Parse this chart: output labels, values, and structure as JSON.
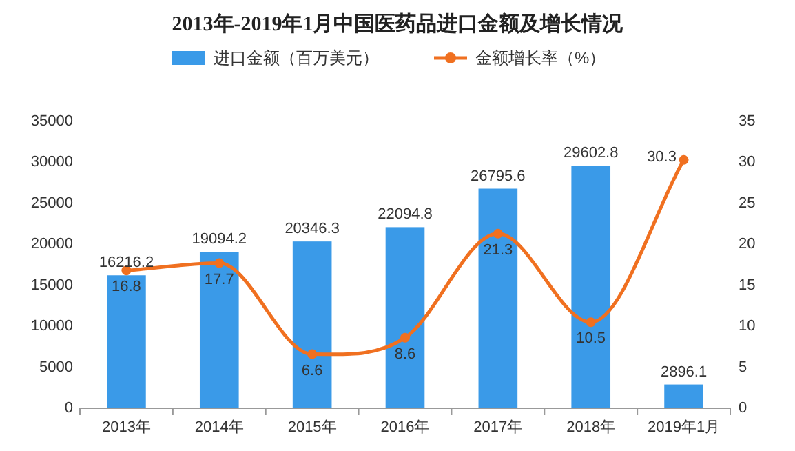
{
  "chart_data": {
    "type": "bar",
    "title": "2013年-2019年1月中国医药品进口金额及增长情况",
    "categories": [
      "2013年",
      "2014年",
      "2015年",
      "2016年",
      "2017年",
      "2018年",
      "2019年1月"
    ],
    "series": [
      {
        "name": "进口金额（百万美元）",
        "color": "#3a9ae8",
        "values": [
          16216.2,
          19094.2,
          20346.3,
          22094.8,
          26795.6,
          29602.8,
          2896.1
        ]
      },
      {
        "name": "金额增长率（%）",
        "type": "line",
        "axis": "y2",
        "color": "#f07020",
        "values": [
          16.8,
          17.7,
          6.6,
          8.6,
          21.3,
          10.5,
          30.3
        ]
      }
    ],
    "ylim": [
      0,
      35000
    ],
    "yticks": [
      0,
      5000,
      10000,
      15000,
      20000,
      25000,
      30000,
      35000
    ],
    "y2lim": [
      0,
      35
    ],
    "y2ticks": [
      0,
      5,
      10,
      15,
      20,
      25,
      30,
      35
    ],
    "data_labels": true,
    "legend": "top",
    "marker": "circle",
    "grid": false
  }
}
